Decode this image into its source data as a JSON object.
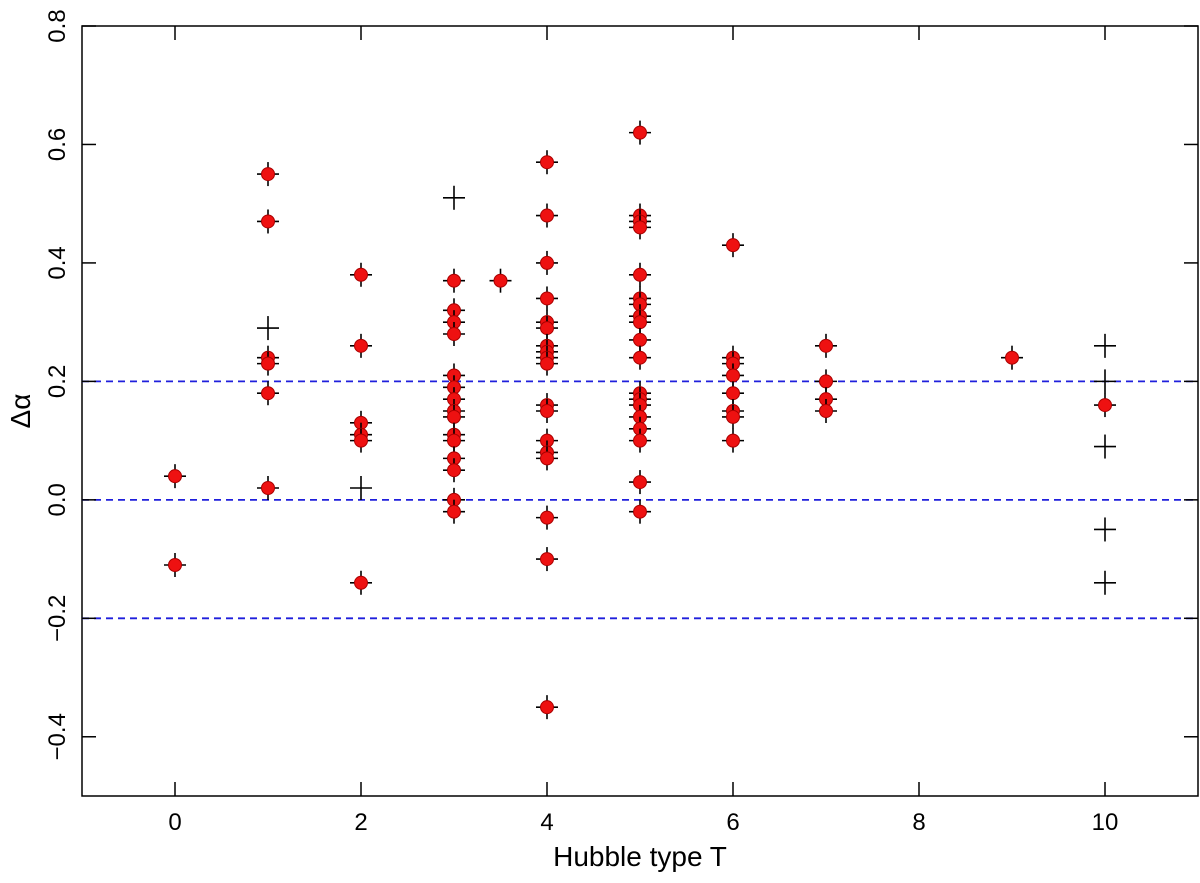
{
  "chart_data": {
    "type": "scatter",
    "title": "",
    "xlabel": "Hubble type T",
    "ylabel": "Δα",
    "xlim": [
      -1,
      11
    ],
    "ylim": [
      -0.5,
      0.8
    ],
    "xticks": [
      0,
      2,
      4,
      6,
      8,
      10
    ],
    "xtick_labels": [
      "0",
      "2",
      "4",
      "6",
      "8",
      "10"
    ],
    "yticks": [
      -0.4,
      -0.2,
      0.0,
      0.2,
      0.4,
      0.6,
      0.8
    ],
    "ytick_labels": [
      "−0.4",
      "−0.2",
      "0.0",
      "0.2",
      "0.4",
      "0.6",
      "0.8"
    ],
    "grid": false,
    "reference_lines": [
      {
        "y": 0.2,
        "style": "dashed",
        "color": "#1f1fdc"
      },
      {
        "y": 0.0,
        "style": "dashed",
        "color": "#1f1fdc"
      },
      {
        "y": -0.2,
        "style": "dashed",
        "color": "#1f1fdc"
      }
    ],
    "colors": {
      "dot": "#ee1111",
      "dot_edge": "#aa0000",
      "cross": "#000000",
      "axis": "#000000"
    },
    "series": [
      {
        "marker": "red-dot-with-cross",
        "points": [
          {
            "x": 0,
            "y": 0.04
          },
          {
            "x": 0,
            "y": -0.11
          },
          {
            "x": 1,
            "y": 0.55
          },
          {
            "x": 1,
            "y": 0.47
          },
          {
            "x": 1,
            "y": 0.24
          },
          {
            "x": 1,
            "y": 0.23
          },
          {
            "x": 1,
            "y": 0.18
          },
          {
            "x": 1,
            "y": 0.02
          },
          {
            "x": 2,
            "y": 0.38
          },
          {
            "x": 2,
            "y": 0.26
          },
          {
            "x": 2,
            "y": 0.13
          },
          {
            "x": 2,
            "y": 0.11
          },
          {
            "x": 2,
            "y": 0.1
          },
          {
            "x": 2,
            "y": -0.14
          },
          {
            "x": 3,
            "y": 0.37
          },
          {
            "x": 3,
            "y": 0.32
          },
          {
            "x": 3,
            "y": 0.3
          },
          {
            "x": 3,
            "y": 0.28
          },
          {
            "x": 3,
            "y": 0.21
          },
          {
            "x": 3,
            "y": 0.19
          },
          {
            "x": 3,
            "y": 0.17
          },
          {
            "x": 3,
            "y": 0.15
          },
          {
            "x": 3,
            "y": 0.14
          },
          {
            "x": 3,
            "y": 0.11
          },
          {
            "x": 3,
            "y": 0.1
          },
          {
            "x": 3,
            "y": 0.07
          },
          {
            "x": 3,
            "y": 0.05
          },
          {
            "x": 3,
            "y": 0.0
          },
          {
            "x": 3,
            "y": -0.02
          },
          {
            "x": 3.5,
            "y": 0.37
          },
          {
            "x": 4,
            "y": 0.57
          },
          {
            "x": 4,
            "y": 0.48
          },
          {
            "x": 4,
            "y": 0.4
          },
          {
            "x": 4,
            "y": 0.34
          },
          {
            "x": 4,
            "y": 0.3
          },
          {
            "x": 4,
            "y": 0.29
          },
          {
            "x": 4,
            "y": 0.26
          },
          {
            "x": 4,
            "y": 0.25
          },
          {
            "x": 4,
            "y": 0.24
          },
          {
            "x": 4,
            "y": 0.23
          },
          {
            "x": 4,
            "y": 0.16
          },
          {
            "x": 4,
            "y": 0.15
          },
          {
            "x": 4,
            "y": 0.1
          },
          {
            "x": 4,
            "y": 0.08
          },
          {
            "x": 4,
            "y": 0.07
          },
          {
            "x": 4,
            "y": -0.03
          },
          {
            "x": 4,
            "y": -0.1
          },
          {
            "x": 4,
            "y": -0.35
          },
          {
            "x": 5,
            "y": 0.62
          },
          {
            "x": 5,
            "y": 0.48
          },
          {
            "x": 5,
            "y": 0.47
          },
          {
            "x": 5,
            "y": 0.46
          },
          {
            "x": 5,
            "y": 0.38
          },
          {
            "x": 5,
            "y": 0.34
          },
          {
            "x": 5,
            "y": 0.33
          },
          {
            "x": 5,
            "y": 0.31
          },
          {
            "x": 5,
            "y": 0.3
          },
          {
            "x": 5,
            "y": 0.27
          },
          {
            "x": 5,
            "y": 0.24
          },
          {
            "x": 5,
            "y": 0.18
          },
          {
            "x": 5,
            "y": 0.17
          },
          {
            "x": 5,
            "y": 0.16
          },
          {
            "x": 5,
            "y": 0.14
          },
          {
            "x": 5,
            "y": 0.12
          },
          {
            "x": 5,
            "y": 0.1
          },
          {
            "x": 5,
            "y": 0.03
          },
          {
            "x": 5,
            "y": -0.02
          },
          {
            "x": 6,
            "y": 0.43
          },
          {
            "x": 6,
            "y": 0.24
          },
          {
            "x": 6,
            "y": 0.23
          },
          {
            "x": 6,
            "y": 0.21
          },
          {
            "x": 6,
            "y": 0.18
          },
          {
            "x": 6,
            "y": 0.15
          },
          {
            "x": 6,
            "y": 0.14
          },
          {
            "x": 6,
            "y": 0.1
          },
          {
            "x": 7,
            "y": 0.26
          },
          {
            "x": 7,
            "y": 0.2
          },
          {
            "x": 7,
            "y": 0.17
          },
          {
            "x": 7,
            "y": 0.15
          },
          {
            "x": 9,
            "y": 0.24
          },
          {
            "x": 10,
            "y": 0.16
          }
        ]
      },
      {
        "marker": "cross-only",
        "points": [
          {
            "x": 1,
            "y": 0.29
          },
          {
            "x": 2,
            "y": 0.02
          },
          {
            "x": 3,
            "y": 0.51
          },
          {
            "x": 10,
            "y": 0.26
          },
          {
            "x": 10,
            "y": 0.2
          },
          {
            "x": 10,
            "y": 0.09
          },
          {
            "x": 10,
            "y": -0.05
          },
          {
            "x": 10,
            "y": -0.14
          }
        ]
      }
    ]
  }
}
